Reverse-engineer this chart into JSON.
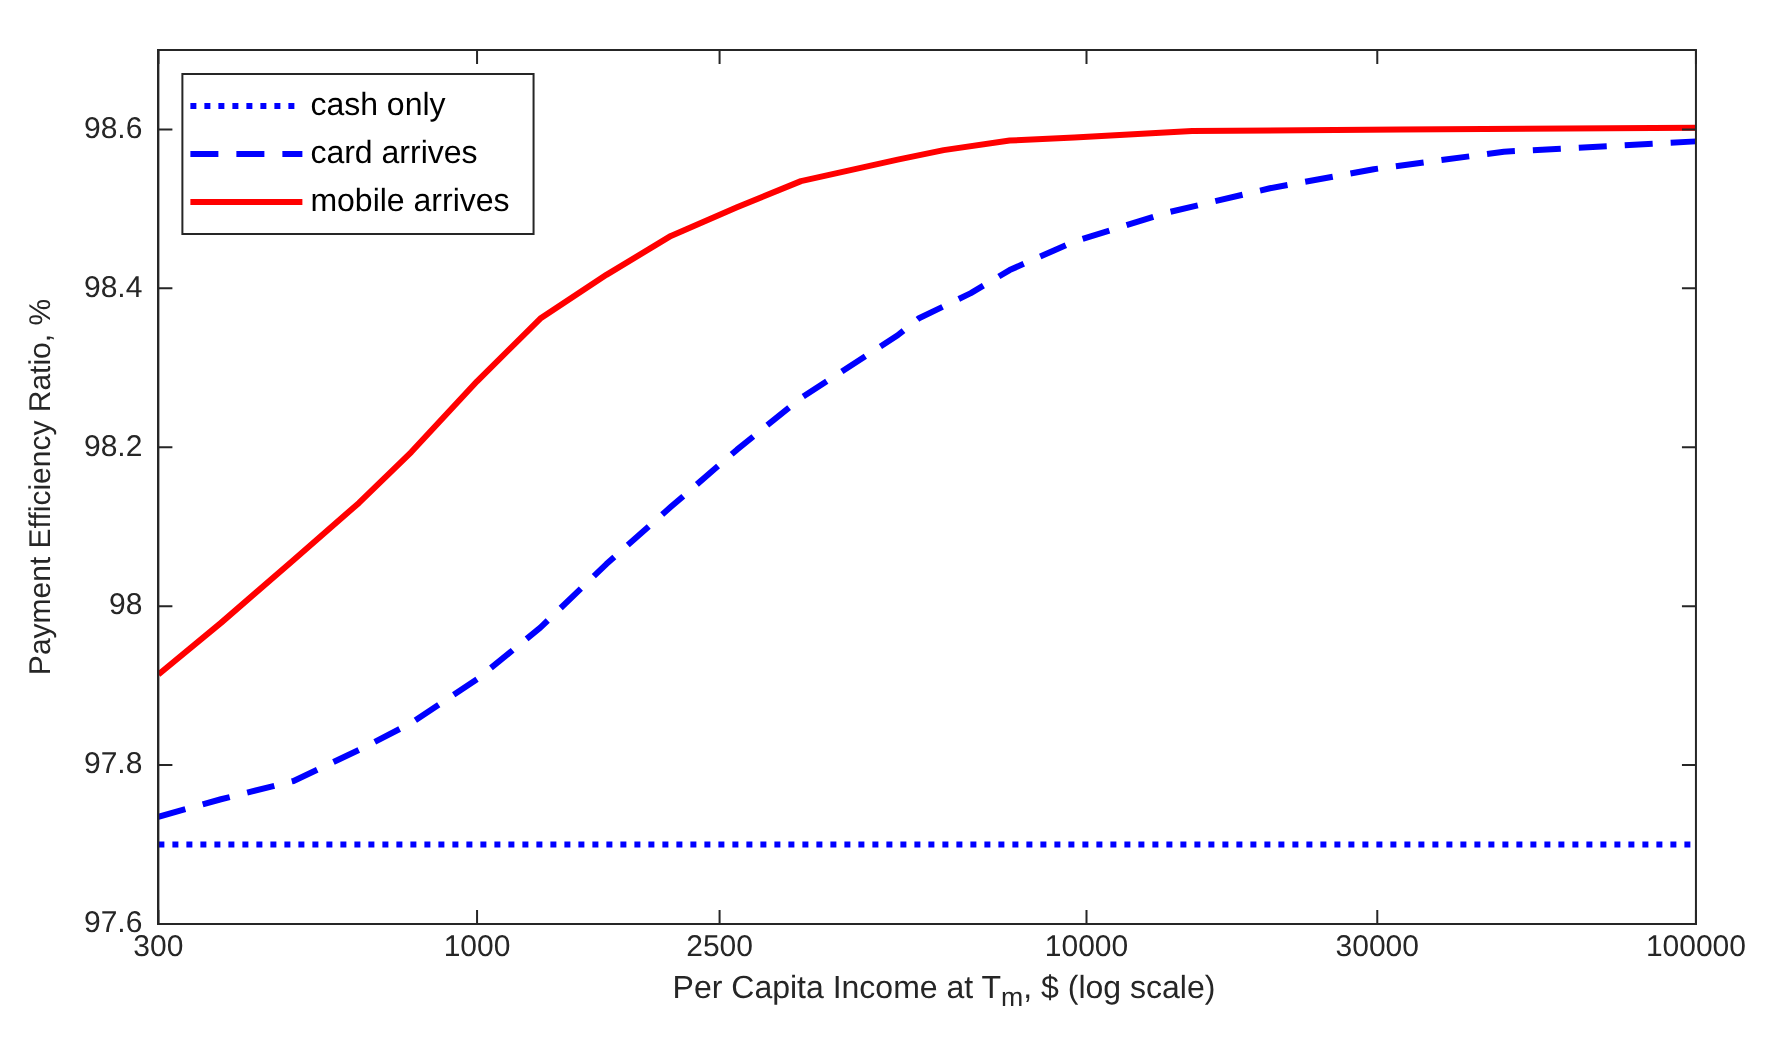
{
  "chart_data": {
    "type": "line",
    "xlabel": "Per Capita Income at T$_{m}$, $ (log scale)",
    "ylabel": "Payment Efficiency Ratio, %",
    "log": "x",
    "xlim": [
      300,
      100000
    ],
    "xticks": [
      300,
      1000,
      2500,
      10000,
      30000,
      100000
    ],
    "ylim": [
      97.6,
      98.7
    ],
    "yticks": [
      97.6,
      97.8,
      98,
      98.2,
      98.4,
      98.6
    ],
    "grid": false,
    "legend": "top left",
    "marker": "none",
    "series": [
      {
        "name": "cash only",
        "color": "#0000ff",
        "line_style": "dotted",
        "x": [
          300,
          100000
        ],
        "values": [
          97.7,
          97.7
        ]
      },
      {
        "name": "card arrives",
        "color": "#0000ff",
        "line_style": "dashed",
        "x": [
          300,
          380,
          500,
          640,
          780,
          1000,
          1270,
          1630,
          2080,
          2670,
          3400,
          4900,
          5300,
          6460,
          7480,
          9550,
          13500,
          20000,
          29600,
          48400,
          100000
        ],
        "values": [
          97.735,
          97.757,
          97.78,
          97.819,
          97.853,
          97.908,
          97.973,
          98.053,
          98.125,
          98.197,
          98.262,
          98.341,
          98.362,
          98.394,
          98.423,
          98.459,
          98.495,
          98.526,
          98.55,
          98.572,
          98.585
        ]
      },
      {
        "name": "mobile arrives",
        "color": "#ff0000",
        "line_style": "solid",
        "x": [
          300,
          380,
          500,
          640,
          780,
          1000,
          1270,
          1630,
          2080,
          2670,
          3400,
          4900,
          5830,
          7480,
          9550,
          14900,
          32700,
          100000
        ],
        "values": [
          97.914,
          97.979,
          98.058,
          98.13,
          98.194,
          98.283,
          98.362,
          98.417,
          98.466,
          98.502,
          98.535,
          98.562,
          98.574,
          98.586,
          98.59,
          98.598,
          98.6,
          98.602
        ]
      }
    ]
  }
}
